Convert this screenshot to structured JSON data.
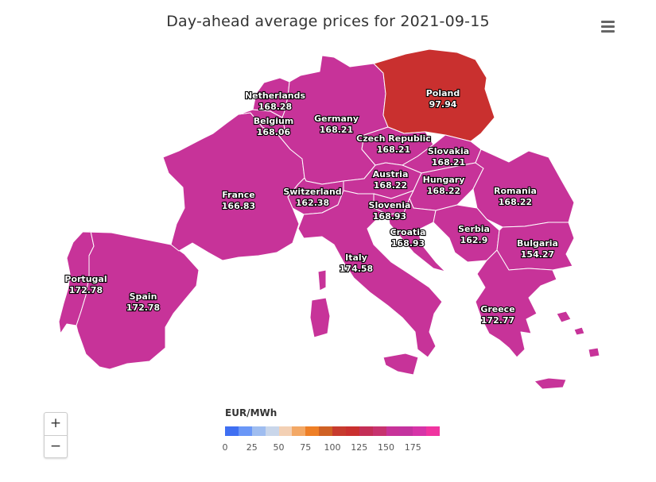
{
  "title": "Day-ahead average prices for 2021-09-15",
  "menu_icon": "hamburger-menu-icon",
  "colors": {
    "main": "#c73399",
    "poland": "#c9302f",
    "border": "#ffffff"
  },
  "countries": [
    {
      "name": "Poland",
      "value": "97.94"
    },
    {
      "name": "Netherlands",
      "value": "168.28"
    },
    {
      "name": "Belgium",
      "value": "168.06"
    },
    {
      "name": "Germany",
      "value": "168.21"
    },
    {
      "name": "Czech Republic",
      "value": "168.21"
    },
    {
      "name": "Slovakia",
      "value": "168.21"
    },
    {
      "name": "Austria",
      "value": "168.22"
    },
    {
      "name": "Hungary",
      "value": "168.22"
    },
    {
      "name": "Romania",
      "value": "168.22"
    },
    {
      "name": "France",
      "value": "166.83"
    },
    {
      "name": "Switzerland",
      "value": "162.38"
    },
    {
      "name": "Slovenia",
      "value": "168.93"
    },
    {
      "name": "Croatia",
      "value": "168.93"
    },
    {
      "name": "Serbia",
      "value": "162.9"
    },
    {
      "name": "Bulgaria",
      "value": "154.27"
    },
    {
      "name": "Italy",
      "value": "174.58"
    },
    {
      "name": "Portugal",
      "value": "172.78"
    },
    {
      "name": "Spain",
      "value": "172.78"
    },
    {
      "name": "Greece",
      "value": "172.77"
    }
  ],
  "zoom": {
    "in_label": "+",
    "out_label": "−"
  },
  "legend": {
    "title": "EUR/MWh",
    "ticks": [
      "0",
      "25",
      "50",
      "75",
      "100",
      "125",
      "150",
      "175"
    ],
    "colors": [
      "#3f6ff2",
      "#6a97f7",
      "#9fbdf0",
      "#c9d6ea",
      "#f3d0b4",
      "#f3a865",
      "#ee7f26",
      "#cf6124",
      "#c73b2e",
      "#c9302f",
      "#c42f57",
      "#c7336f",
      "#c73399",
      "#c4339f",
      "#d634a8",
      "#f034a0"
    ]
  }
}
